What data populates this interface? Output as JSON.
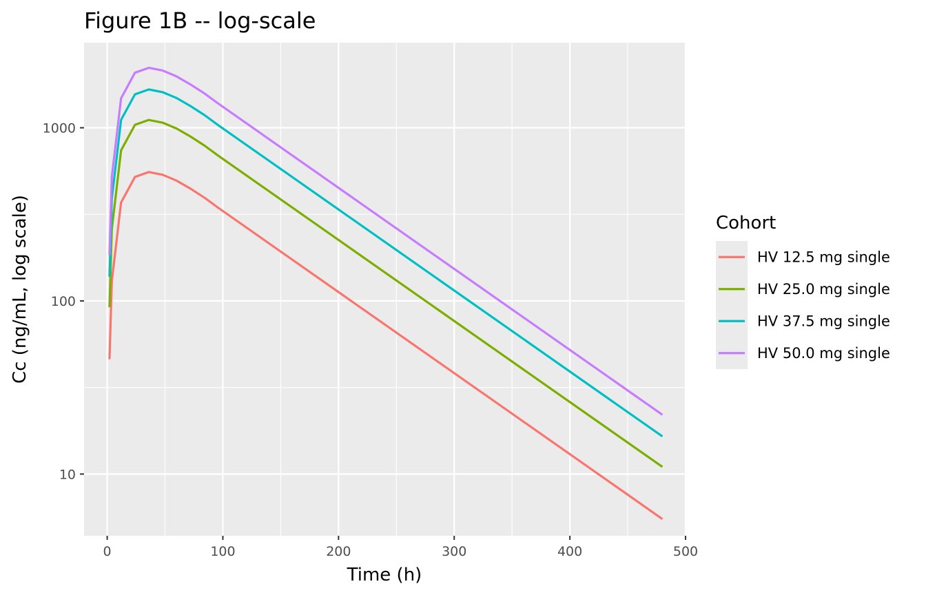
{
  "chart_data": {
    "type": "line",
    "title": "Figure 1B -- log-scale",
    "xlabel": "Time (h)",
    "ylabel": "Cc (ng/mL, log scale)",
    "xlim": [
      -20,
      500
    ],
    "ylim": [
      4.4,
      3100
    ],
    "y_scale": "log10",
    "x_ticks": [
      0,
      100,
      200,
      300,
      400,
      500
    ],
    "x_tick_labels": [
      "0",
      "100",
      "200",
      "300",
      "400",
      "500"
    ],
    "y_ticks": [
      10,
      100,
      1000
    ],
    "y_tick_labels": [
      "10",
      "100",
      "1000"
    ],
    "grid": true,
    "background": "#EBEBEB",
    "legend_title": "Cohort",
    "legend_position": "right",
    "x": [
      2,
      4,
      12,
      24,
      36,
      48,
      60,
      72,
      84,
      96,
      480
    ],
    "series": [
      {
        "name": "HV 12.5 mg single",
        "color": "#F8766D",
        "values": [
          46,
          130,
          370,
          520,
          555,
          535,
          495,
          445,
          395,
          345,
          5.5
        ]
      },
      {
        "name": "HV 25.0 mg single",
        "color": "#7CAE00",
        "values": [
          92,
          260,
          740,
          1040,
          1110,
          1070,
          990,
          890,
          790,
          690,
          11
        ]
      },
      {
        "name": "HV 37.5 mg single",
        "color": "#00BFC4",
        "values": [
          138,
          390,
          1110,
          1560,
          1665,
          1605,
          1485,
          1335,
          1185,
          1035,
          16.5
        ]
      },
      {
        "name": "HV 50.0 mg single",
        "color": "#C77CFF",
        "values": [
          184,
          520,
          1480,
          2080,
          2220,
          2140,
          1980,
          1780,
          1580,
          1380,
          22
        ]
      }
    ]
  }
}
